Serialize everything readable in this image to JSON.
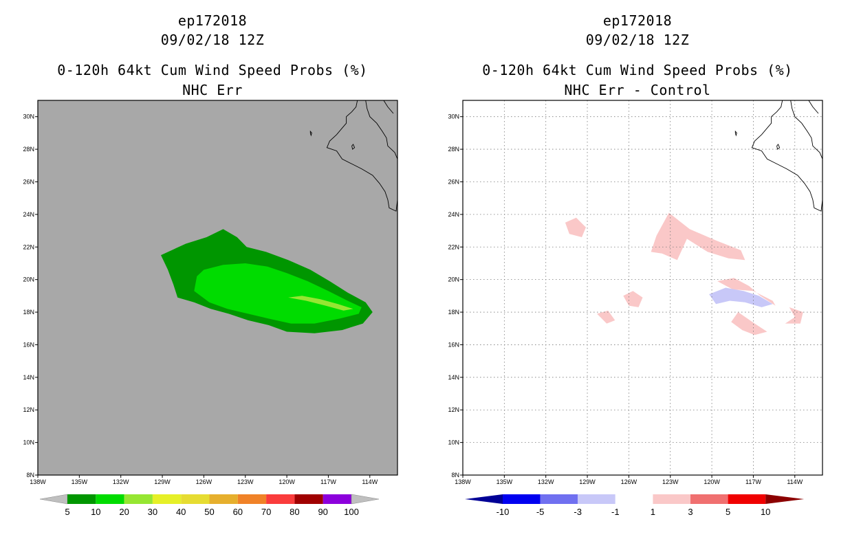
{
  "left": {
    "title1": "ep172018",
    "title2": "09/02/18 12Z",
    "title3": "0-120h 64kt Cum Wind Speed Probs (%)",
    "title4": "NHC Err",
    "background_color": "#a8a8a8",
    "colorbar": {
      "colors": [
        "#009600",
        "#00dc00",
        "#96e632",
        "#e6f028",
        "#e6dc32",
        "#e6af2d",
        "#f08228",
        "#fa3c3c",
        "#a00000",
        "#8c00dc"
      ],
      "end_low": "#bfbfbf",
      "end_high": "#bfbfbf",
      "labels": [
        "5",
        "10",
        "20",
        "30",
        "40",
        "50",
        "60",
        "70",
        "80",
        "90",
        "100"
      ]
    }
  },
  "right": {
    "title1": "ep172018",
    "title2": "09/02/18 12Z",
    "title3": "0-120h 64kt Cum Wind Speed Probs (%)",
    "title4": "NHC Err - Control",
    "background_color": "#ffffff",
    "colorbar": {
      "colors": [
        "#0000f0",
        "#7070f0",
        "#c8c8f8",
        "#ffffff",
        "#fac8c8",
        "#f07070",
        "#f00000"
      ],
      "end_low": "#000096",
      "end_high": "#8c0000",
      "labels": [
        "-10",
        "-5",
        "-3",
        "-1",
        "1",
        "3",
        "5",
        "10"
      ]
    }
  },
  "map": {
    "lon_min": -138,
    "lon_max": -112,
    "lat_min": 8,
    "lat_max": 31,
    "lon_ticks": [
      -138,
      -135,
      -132,
      -129,
      -126,
      -123,
      -120,
      -117,
      -114
    ],
    "lat_ticks": [
      8,
      10,
      12,
      14,
      16,
      18,
      20,
      22,
      24,
      26,
      28,
      30
    ],
    "lon_labels": [
      "138W",
      "135W",
      "132W",
      "129W",
      "126W",
      "123W",
      "120W",
      "117W",
      "114W"
    ],
    "lat_labels": [
      "8N",
      "10N",
      "12N",
      "14N",
      "16N",
      "18N",
      "20N",
      "22N",
      "24N",
      "26N",
      "28N",
      "30N"
    ]
  },
  "chart_data": [
    {
      "type": "heatmap",
      "title": "0-120h 64kt Cum Wind Speed Probs (%) - NHC Err",
      "units": "%",
      "levels": [
        5,
        10,
        20,
        30,
        40,
        50,
        60,
        70,
        80,
        90,
        100
      ],
      "regions": [
        {
          "level": 5,
          "lonlat": [
            [
              -129.1,
              21.5
            ],
            [
              -127.3,
              22.2
            ],
            [
              -125.8,
              22.6
            ],
            [
              -124.6,
              23.1
            ],
            [
              -123.6,
              22.6
            ],
            [
              -122.9,
              22.0
            ],
            [
              -121.5,
              21.7
            ],
            [
              -119.9,
              21.2
            ],
            [
              -118.3,
              20.6
            ],
            [
              -116.9,
              19.9
            ],
            [
              -115.6,
              19.2
            ],
            [
              -114.3,
              18.6
            ],
            [
              -113.8,
              18.0
            ],
            [
              -114.5,
              17.3
            ],
            [
              -116.0,
              16.9
            ],
            [
              -118.0,
              16.7
            ],
            [
              -120.0,
              16.8
            ],
            [
              -121.3,
              17.2
            ],
            [
              -122.8,
              17.5
            ],
            [
              -124.2,
              17.9
            ],
            [
              -125.5,
              18.2
            ],
            [
              -126.7,
              18.6
            ],
            [
              -127.9,
              18.9
            ],
            [
              -128.2,
              19.7
            ],
            [
              -128.6,
              20.6
            ]
          ]
        },
        {
          "level": 10,
          "lonlat": [
            [
              -126.0,
              20.6
            ],
            [
              -124.6,
              20.9
            ],
            [
              -123.0,
              21.0
            ],
            [
              -121.4,
              20.8
            ],
            [
              -120.0,
              20.4
            ],
            [
              -118.5,
              19.9
            ],
            [
              -117.0,
              19.3
            ],
            [
              -115.6,
              18.7
            ],
            [
              -114.6,
              18.3
            ],
            [
              -114.8,
              17.9
            ],
            [
              -116.2,
              17.6
            ],
            [
              -118.0,
              17.3
            ],
            [
              -119.7,
              17.3
            ],
            [
              -121.3,
              17.6
            ],
            [
              -122.8,
              17.9
            ],
            [
              -124.3,
              18.2
            ],
            [
              -125.6,
              18.6
            ],
            [
              -126.7,
              19.3
            ],
            [
              -126.5,
              20.2
            ]
          ]
        },
        {
          "level": 20,
          "lonlat": [
            [
              -119.9,
              18.9
            ],
            [
              -118.6,
              18.7
            ],
            [
              -117.2,
              18.4
            ],
            [
              -115.9,
              18.1
            ],
            [
              -115.2,
              18.2
            ],
            [
              -116.3,
              18.5
            ],
            [
              -117.6,
              18.8
            ],
            [
              -118.9,
              19.0
            ]
          ]
        }
      ]
    },
    {
      "type": "heatmap",
      "title": "0-120h 64kt Cum Wind Speed Probs (%) - NHC Err - Control",
      "units": "%",
      "levels": [
        -10,
        -5,
        -3,
        -1,
        1,
        3,
        5,
        10
      ],
      "regions": [
        {
          "level": 1,
          "lonlat": [
            [
              -130.6,
              23.5
            ],
            [
              -129.8,
              23.8
            ],
            [
              -129.1,
              23.2
            ],
            [
              -129.4,
              22.6
            ],
            [
              -130.3,
              22.8
            ]
          ]
        },
        {
          "level": 1,
          "lonlat": [
            [
              -123.1,
              24.1
            ],
            [
              -121.6,
              23.1
            ],
            [
              -119.7,
              22.4
            ],
            [
              -117.9,
              21.8
            ],
            [
              -117.6,
              21.2
            ],
            [
              -118.8,
              21.3
            ],
            [
              -120.3,
              21.7
            ],
            [
              -121.8,
              22.5
            ],
            [
              -122.5,
              21.2
            ],
            [
              -123.6,
              21.6
            ],
            [
              -124.4,
              21.7
            ],
            [
              -124.0,
              22.7
            ]
          ]
        },
        {
          "level": 1,
          "lonlat": [
            [
              -126.4,
              19.0
            ],
            [
              -125.7,
              19.3
            ],
            [
              -125.0,
              18.9
            ],
            [
              -125.3,
              18.3
            ],
            [
              -126.0,
              18.4
            ]
          ]
        },
        {
          "level": 1,
          "lonlat": [
            [
              -119.6,
              19.9
            ],
            [
              -118.4,
              20.1
            ],
            [
              -117.3,
              19.6
            ],
            [
              -116.5,
              19.0
            ],
            [
              -115.4,
              18.4
            ],
            [
              -115.6,
              18.7
            ],
            [
              -117.0,
              19.3
            ],
            [
              -118.5,
              19.4
            ]
          ]
        },
        {
          "level": 1,
          "lonlat": [
            [
              -118.1,
              18.0
            ],
            [
              -116.9,
              17.3
            ],
            [
              -116.0,
              16.8
            ],
            [
              -116.9,
              16.6
            ],
            [
              -117.8,
              16.9
            ],
            [
              -118.6,
              17.4
            ]
          ]
        },
        {
          "level": 1,
          "lonlat": [
            [
              -114.4,
              18.3
            ],
            [
              -113.4,
              18.0
            ],
            [
              -113.6,
              17.3
            ],
            [
              -114.7,
              17.3
            ],
            [
              -114.0,
              17.7
            ]
          ]
        },
        {
          "level": 1,
          "lonlat": [
            [
              -128.3,
              17.9
            ],
            [
              -127.6,
              17.3
            ],
            [
              -127.0,
              17.5
            ],
            [
              -127.5,
              18.1
            ]
          ]
        },
        {
          "level": -1,
          "lonlat": [
            [
              -120.2,
              19.1
            ],
            [
              -119.0,
              19.5
            ],
            [
              -117.7,
              19.3
            ],
            [
              -116.6,
              19.0
            ],
            [
              -115.6,
              18.5
            ],
            [
              -116.4,
              18.3
            ],
            [
              -117.6,
              18.6
            ],
            [
              -118.7,
              18.7
            ],
            [
              -119.7,
              18.5
            ]
          ]
        }
      ]
    }
  ]
}
